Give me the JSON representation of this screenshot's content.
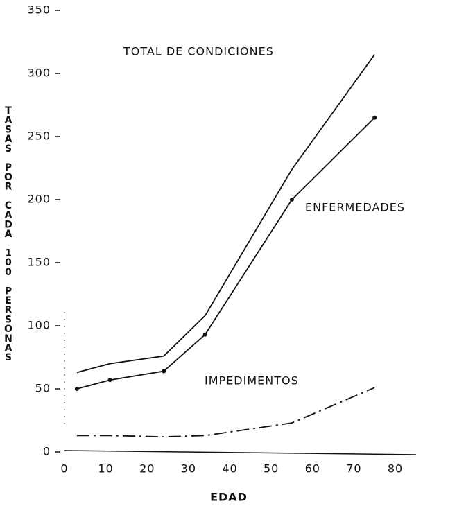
{
  "chart_data": {
    "type": "line",
    "x_label": "EDAD",
    "y_label": "TASAS POR CADA 100 PERSONAS",
    "x": [
      3,
      11,
      24,
      34,
      55,
      75
    ],
    "series": [
      {
        "name": "TOTAL DE CONDICIONES",
        "color": "#111111",
        "values": [
          63,
          70,
          76,
          108,
          224,
          315
        ]
      },
      {
        "name": "ENFERMEDADES",
        "color": "#111111",
        "values": [
          50,
          57,
          64,
          93,
          200,
          265
        ]
      },
      {
        "name": "IMPEDIMENTOS",
        "color": "#111111",
        "values": [
          13,
          13,
          12,
          13,
          23,
          51
        ]
      }
    ],
    "xlim": [
      0,
      85
    ],
    "xticks": [
      0,
      10,
      20,
      30,
      40,
      50,
      60,
      70,
      80
    ],
    "ylim": [
      0,
      350
    ],
    "yticks": [
      0,
      50,
      100,
      150,
      200,
      250,
      300,
      350
    ],
    "grid": false
  }
}
